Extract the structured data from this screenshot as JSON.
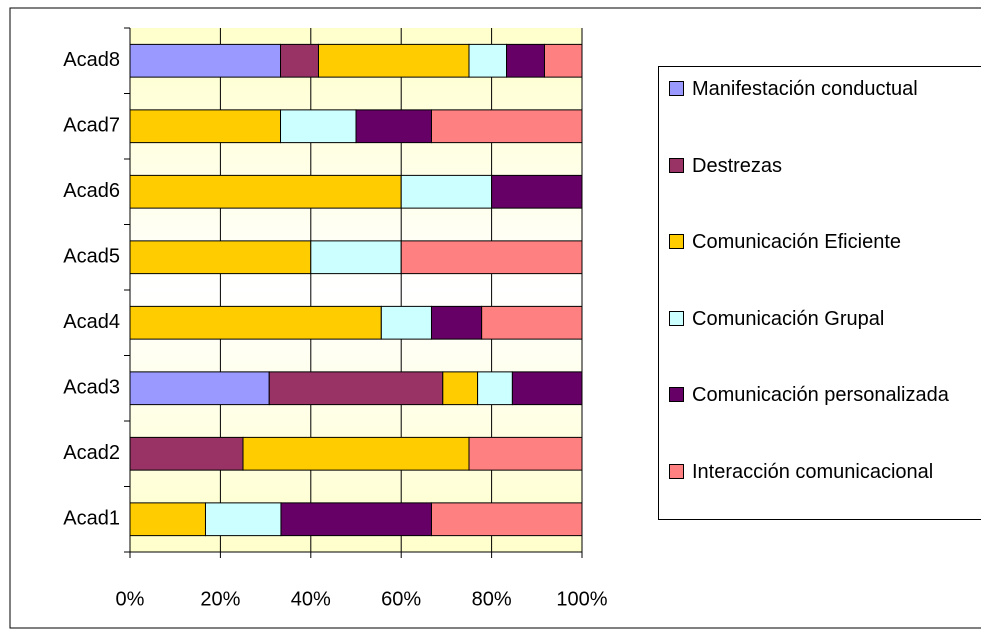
{
  "chart_data": {
    "type": "bar",
    "orientation": "horizontal",
    "stacked": "percent",
    "categories": [
      "Acad1",
      "Acad2",
      "Acad3",
      "Acad4",
      "Acad5",
      "Acad6",
      "Acad7",
      "Acad8"
    ],
    "series": [
      {
        "name": "Manifestación conductual",
        "color": "#9999ff",
        "values": [
          0,
          0,
          30.8,
          0,
          0,
          0,
          0,
          33.3
        ]
      },
      {
        "name": "Destrezas",
        "color": "#993366",
        "values": [
          0,
          25,
          38.4,
          0,
          0,
          0,
          0,
          8.4
        ]
      },
      {
        "name": "Comunicación Eficiente",
        "color": "#ffcc00",
        "values": [
          16.7,
          50,
          7.7,
          55.6,
          40,
          60,
          33.3,
          33.3
        ]
      },
      {
        "name": "Comunicación Grupal",
        "color": "#ccffff",
        "values": [
          16.7,
          0,
          7.7,
          11.1,
          20,
          20,
          16.7,
          8.3
        ]
      },
      {
        "name": "Comunicación personalizada",
        "color": "#660066",
        "values": [
          33.3,
          0,
          15.4,
          11.1,
          0,
          20,
          16.7,
          8.4
        ]
      },
      {
        "name": "Interacción comunicacional",
        "color": "#ff8080",
        "values": [
          33.3,
          25,
          0,
          22.2,
          40,
          0,
          33.3,
          8.3
        ]
      }
    ],
    "xlim": [
      0,
      100
    ],
    "xticks": [
      {
        "value": 0,
        "label": "0%"
      },
      {
        "value": 20,
        "label": "20%"
      },
      {
        "value": 40,
        "label": "40%"
      },
      {
        "value": 60,
        "label": "60%"
      },
      {
        "value": 80,
        "label": "80%"
      },
      {
        "value": 100,
        "label": "100%"
      }
    ],
    "grid": true,
    "legend": "right"
  }
}
